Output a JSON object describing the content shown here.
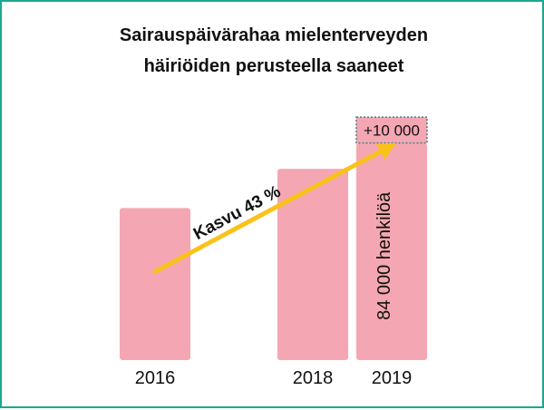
{
  "chart_data": {
    "type": "bar",
    "title_lines": [
      "Sairauspäivärahaa mielenterveyden",
      "häiriöiden perusteella saaneet"
    ],
    "categories": [
      "2016",
      "2018",
      "2019"
    ],
    "values": [
      58800,
      74000,
      84000
    ],
    "increase_segment": {
      "category": "2019",
      "value": 10000,
      "label": "+10 000"
    },
    "bar_label": {
      "category": "2019",
      "text": "84 000 henkilöä"
    },
    "growth_arrow": {
      "from": "2016",
      "to": "2019",
      "label": "Kasvu 43 %"
    },
    "ylim": [
      0,
      100000
    ],
    "grid": false,
    "colors": {
      "bar": "#f4a7b3",
      "arrow": "#f9c21b",
      "border": "#1aa88f",
      "badge": "#f4a7b3"
    }
  }
}
